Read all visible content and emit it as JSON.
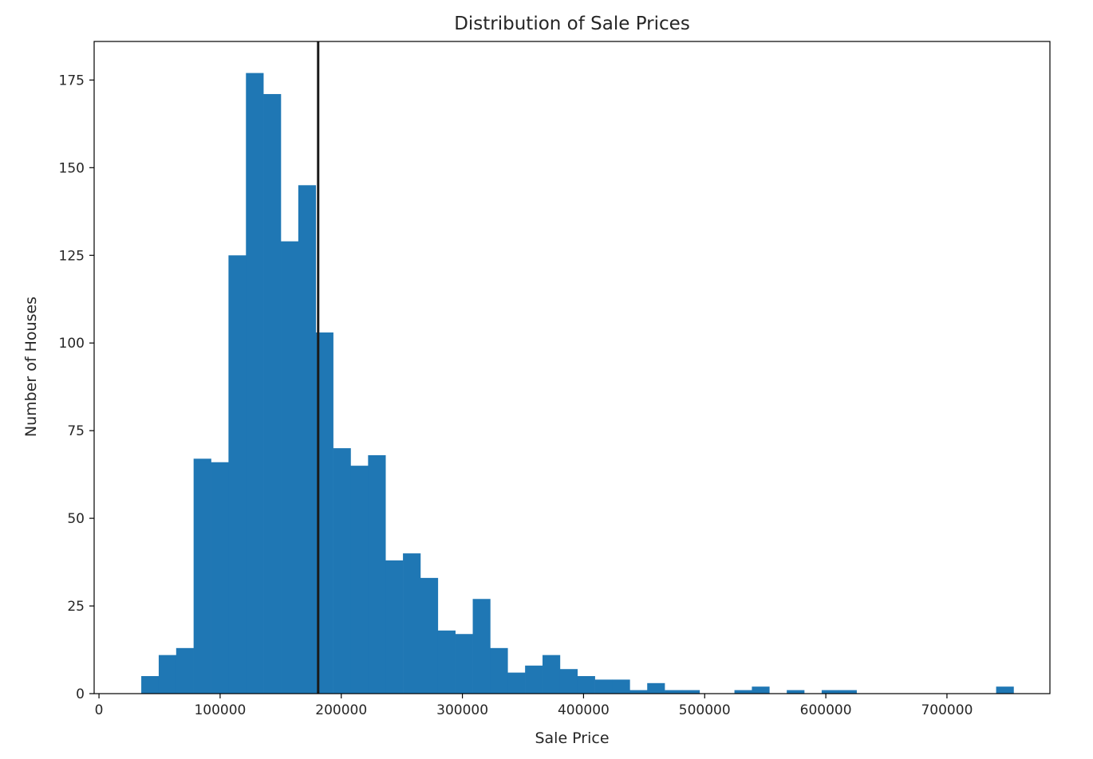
{
  "chart_data": {
    "type": "bar",
    "title": "Distribution of Sale Prices",
    "xlabel": "Sale Price",
    "ylabel": "Number of Houses",
    "xlim": [
      -4000,
      785000
    ],
    "ylim": [
      0,
      186
    ],
    "xticks": [
      0,
      100000,
      200000,
      300000,
      400000,
      500000,
      600000,
      700000
    ],
    "yticks": [
      0,
      25,
      50,
      75,
      100,
      125,
      150,
      175
    ],
    "bin_edges": [
      34900,
      49302,
      63704,
      78106,
      92508,
      106910,
      121312,
      135714,
      150116,
      164518,
      178920,
      193322,
      207724,
      222126,
      236528,
      250930,
      265332,
      279734,
      294136,
      308538,
      322940,
      337342,
      351744,
      366146,
      380548,
      394950,
      409352,
      423754,
      438156,
      452558,
      466960,
      481362,
      495764,
      510166,
      524568,
      538970,
      553372,
      567774,
      582176,
      596578,
      610980,
      625382,
      639784,
      654186,
      668588,
      682990,
      697392,
      711794,
      726196,
      740598,
      755000
    ],
    "values": [
      5,
      11,
      13,
      67,
      66,
      125,
      177,
      171,
      129,
      145,
      103,
      70,
      65,
      68,
      38,
      40,
      33,
      18,
      17,
      27,
      13,
      6,
      8,
      11,
      7,
      5,
      4,
      4,
      1,
      3,
      1,
      1,
      0,
      0,
      1,
      2,
      0,
      1,
      0,
      1,
      1,
      0,
      0,
      0,
      0,
      0,
      0,
      0,
      0,
      2
    ],
    "vline": {
      "x": 180921
    },
    "bar_color": "#1f77b4",
    "vline_color": "#1a1a1a",
    "grid": false
  }
}
